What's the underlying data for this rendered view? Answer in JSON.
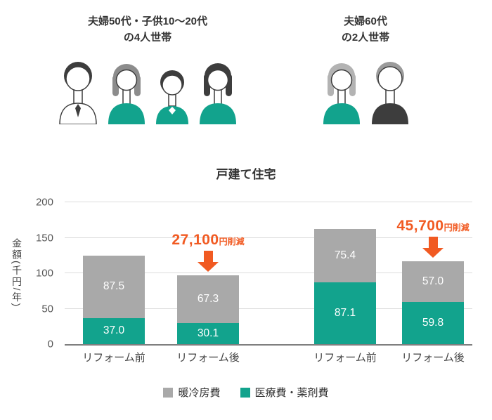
{
  "households": {
    "left": {
      "label_line1": "夫婦50代・子供10〜20代",
      "label_line2": "の4人世帯",
      "member_icons": [
        "father-icon",
        "daughter-icon",
        "child-icon",
        "mother-icon"
      ]
    },
    "right": {
      "label_line1": "夫婦60代",
      "label_line2": "の2人世帯",
      "member_icons": [
        "grandmother-icon",
        "grandfather-icon"
      ]
    }
  },
  "chart_data": {
    "type": "bar",
    "stacked": true,
    "title": "戸建て住宅",
    "ylabel": "金額(千円/年)",
    "ylim": [
      0,
      200
    ],
    "yticks": [
      0,
      50,
      100,
      150,
      200
    ],
    "grid": true,
    "categories": [
      "リフォーム前",
      "リフォーム後",
      "リフォーム前",
      "リフォーム後"
    ],
    "series": [
      {
        "name": "医療費・薬剤費",
        "color": "#12a38d",
        "values": [
          37.0,
          30.1,
          87.1,
          59.8
        ]
      },
      {
        "name": "暖冷房費",
        "color": "#a9a9a9",
        "values": [
          87.5,
          67.3,
          75.4,
          57.0
        ]
      }
    ],
    "annotations": [
      {
        "amount": "27,100",
        "suffix": "円削減",
        "bar_index": 1
      },
      {
        "amount": "45,700",
        "suffix": "円削減",
        "bar_index": 3
      }
    ],
    "legend": [
      {
        "label": "暖冷房費",
        "color": "#a9a9a9"
      },
      {
        "label": "医療費・薬剤費",
        "color": "#12a38d"
      }
    ],
    "legend_position": "bottom"
  },
  "colors": {
    "teal": "#12a38d",
    "gray": "#a9a9a9",
    "orange": "#f15a22",
    "text": "#333333",
    "axis": "#7f7f7f"
  }
}
